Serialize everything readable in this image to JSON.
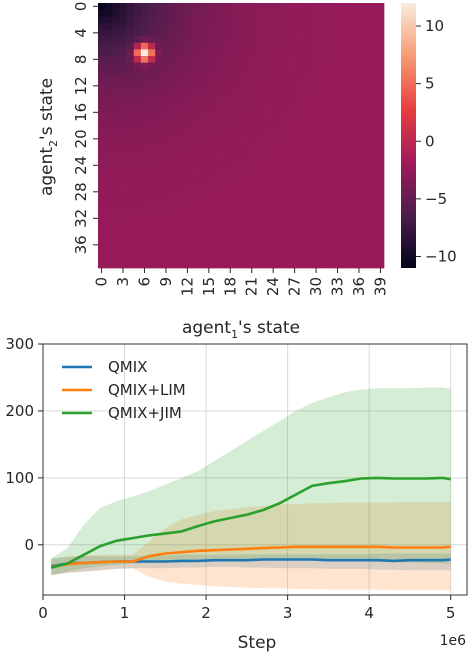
{
  "chart_data": [
    {
      "type": "heatmap",
      "xlabel_main": "agent",
      "xlabel_sub": "1",
      "xlabel_rest": "'s state",
      "ylabel_main": "agent",
      "ylabel_sub": "2",
      "ylabel_rest": "'s state",
      "x_tick_labels": [
        "0",
        "3",
        "6",
        "9",
        "12",
        "15",
        "18",
        "21",
        "24",
        "27",
        "30",
        "33",
        "36",
        "39"
      ],
      "y_tick_labels": [
        "0",
        "4",
        "8",
        "12",
        "16",
        "20",
        "24",
        "28",
        "32",
        "36"
      ],
      "grid_size": 40,
      "hot_spot": {
        "x": 6,
        "y": 7,
        "value": 12
      },
      "colorbar": {
        "range": [
          -11,
          12
        ],
        "tick_values": [
          10,
          5,
          0,
          -5,
          -10
        ],
        "tick_labels": [
          "10",
          "5",
          "0",
          "−5",
          "−10"
        ]
      }
    },
    {
      "type": "line",
      "xlabel": "Step",
      "ylabel": "",
      "x_offset_label": "1e6",
      "xlim": [
        0,
        5.2
      ],
      "ylim": [
        -75,
        300
      ],
      "x_ticks": [
        0,
        1,
        2,
        3,
        4,
        5
      ],
      "y_ticks": [
        -100,
        0,
        100,
        200,
        300
      ],
      "y_tick_labels": [
        "",
        "0",
        "100",
        "200",
        "300"
      ],
      "grid": true,
      "legend_position": "upper-left",
      "x": [
        0.1,
        0.3,
        0.5,
        0.7,
        0.9,
        1.1,
        1.3,
        1.5,
        1.7,
        1.9,
        2.1,
        2.3,
        2.5,
        2.7,
        2.9,
        3.1,
        3.3,
        3.5,
        3.7,
        3.9,
        4.1,
        4.3,
        4.5,
        4.7,
        4.9,
        5.0
      ],
      "series": [
        {
          "name": "QMIX",
          "color": "#1f77b4",
          "values": [
            -32,
            -28,
            -27,
            -26,
            -25,
            -25,
            -25,
            -25,
            -24,
            -24,
            -23,
            -23,
            -23,
            -22,
            -22,
            -22,
            -22,
            -23,
            -23,
            -23,
            -23,
            -24,
            -23,
            -23,
            -23,
            -22
          ],
          "lower": [
            -45,
            -42,
            -40,
            -38,
            -36,
            -35,
            -35,
            -35,
            -34,
            -34,
            -33,
            -33,
            -34,
            -34,
            -35,
            -35,
            -35,
            -36,
            -36,
            -36,
            -37,
            -37,
            -38,
            -38,
            -38,
            -38
          ],
          "upper": [
            -20,
            -18,
            -17,
            -17,
            -17,
            -17,
            -16,
            -16,
            -15,
            -15,
            -15,
            -15,
            -14,
            -14,
            -14,
            -14,
            -14,
            -14,
            -14,
            -14,
            -13,
            -13,
            -13,
            -13,
            -13,
            -13
          ]
        },
        {
          "name": "QMIX+LIM",
          "color": "#ff7f0e",
          "values": [
            -33,
            -29,
            -27,
            -26,
            -25,
            -25,
            -17,
            -13,
            -11,
            -9,
            -8,
            -7,
            -6,
            -5,
            -4,
            -3,
            -3,
            -3,
            -3,
            -3,
            -3,
            -4,
            -4,
            -4,
            -4,
            -3
          ],
          "lower": [
            -45,
            -42,
            -40,
            -38,
            -36,
            -35,
            -48,
            -55,
            -58,
            -60,
            -62,
            -63,
            -64,
            -65,
            -65,
            -66,
            -66,
            -67,
            -67,
            -67,
            -67,
            -68,
            -68,
            -68,
            -68,
            -68
          ],
          "upper": [
            -22,
            -18,
            -16,
            -15,
            -15,
            -15,
            5,
            25,
            38,
            45,
            50,
            53,
            56,
            58,
            60,
            61,
            62,
            62,
            63,
            63,
            63,
            63,
            64,
            64,
            64,
            64
          ]
        },
        {
          "name": "QMIX+JIM",
          "color": "#2ca02c",
          "values": [
            -34,
            -28,
            -15,
            -2,
            6,
            10,
            14,
            17,
            20,
            28,
            35,
            40,
            45,
            52,
            62,
            75,
            88,
            92,
            95,
            99,
            100,
            99,
            99,
            99,
            100,
            98
          ],
          "lower": [
            -46,
            -40,
            -35,
            -32,
            -30,
            -28,
            -27,
            -26,
            -25,
            -25,
            -24,
            -24,
            -23,
            -23,
            -23,
            -23,
            -24,
            -24,
            -24,
            -25,
            -25,
            -26,
            -26,
            -27,
            -28,
            -28
          ],
          "upper": [
            -20,
            -5,
            30,
            55,
            65,
            72,
            80,
            90,
            100,
            110,
            125,
            140,
            155,
            170,
            185,
            200,
            212,
            220,
            228,
            232,
            234,
            234,
            234,
            235,
            235,
            233
          ]
        }
      ]
    }
  ]
}
